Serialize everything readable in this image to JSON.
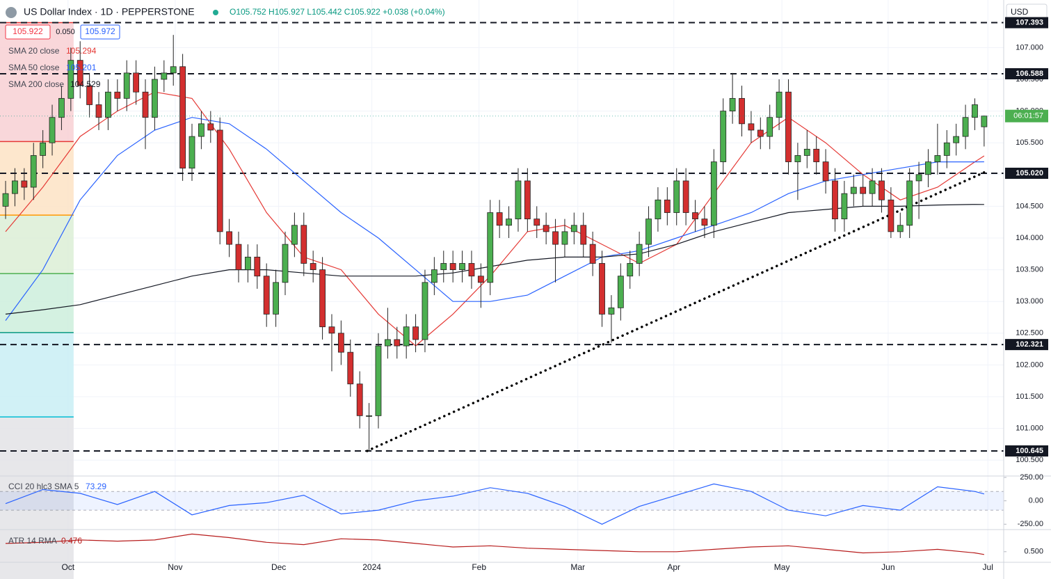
{
  "header": {
    "symbol": "US Dollar Index · 1D · PEPPERSTONE",
    "ohlc": "O105.752 H105.927 L105.442 C105.922 +0.038 (+0.04%)",
    "price_boxes": [
      "105.922",
      "0.050",
      "105.972"
    ],
    "currency": "USD",
    "countdown": "06:01:57"
  },
  "chart_data": [
    {
      "type": "candlestick",
      "xlim": [
        -0.6,
        107.1
      ],
      "ylim": [
        100.25,
        107.75
      ],
      "grid": true,
      "up_color": "#4caf50",
      "down_color": "#d32f2f",
      "xticks": [
        {
          "value": 6.7,
          "label": "Oct"
        },
        {
          "value": 18.2,
          "label": "Nov"
        },
        {
          "value": 29.3,
          "label": "Dec"
        },
        {
          "value": 39.3,
          "label": "2024"
        },
        {
          "value": 50.8,
          "label": "Feb"
        },
        {
          "value": 61.4,
          "label": "Mar"
        },
        {
          "value": 71.7,
          "label": "Apr"
        },
        {
          "value": 83.3,
          "label": "May"
        },
        {
          "value": 94.7,
          "label": "Jun"
        },
        {
          "value": 105.4,
          "label": "Jul"
        }
      ],
      "yticks": [
        {
          "value": 100.5,
          "label": "100.500"
        },
        {
          "value": 101,
          "label": "101.000"
        },
        {
          "value": 101.5,
          "label": "101.500"
        },
        {
          "value": 102,
          "label": "102.000"
        },
        {
          "value": 102.5,
          "label": "102.500"
        },
        {
          "value": 103,
          "label": "103.000"
        },
        {
          "value": 103.5,
          "label": "103.500"
        },
        {
          "value": 104,
          "label": "104.000"
        },
        {
          "value": 104.5,
          "label": "104.500"
        },
        {
          "value": 105,
          "label": "105.000"
        },
        {
          "value": 105.5,
          "label": "105.500"
        },
        {
          "value": 106,
          "label": "106.000"
        },
        {
          "value": 106.5,
          "label": "106.500"
        },
        {
          "value": 107,
          "label": "107.000"
        }
      ],
      "open": [
        104.5,
        104.7,
        104.9,
        104.8,
        105.3,
        105.5,
        105.9,
        106.2,
        106.8,
        106.4,
        106.1,
        105.9,
        106.3,
        106.2,
        106.6,
        106.3,
        105.9,
        106.5,
        106.6,
        106.7,
        105.1,
        105.6,
        105.8,
        105.7,
        104.1,
        103.9,
        103.5,
        103.7,
        103.4,
        102.8,
        103.3,
        103.9,
        104.2,
        103.6,
        103.5,
        102.6,
        102.5,
        102.2,
        101.7,
        101.2,
        101.2,
        102.3,
        102.4,
        102.3,
        102.6,
        102.4,
        103.3,
        103.5,
        103.6,
        103.5,
        103.6,
        103.4,
        103.3,
        104.4,
        104.2,
        104.3,
        104.9,
        104.3,
        104.2,
        104.1,
        103.9,
        104.1,
        104.2,
        103.9,
        103.6,
        102.8,
        102.9,
        103.4,
        103.6,
        103.9,
        104.3,
        104.6,
        104.4,
        104.9,
        104.4,
        104.3,
        104.2,
        105.2,
        106.0,
        106.2,
        105.8,
        105.7,
        105.6,
        105.9,
        106.3,
        105.2,
        105.3,
        105.4,
        105.2,
        104.9,
        104.3,
        104.7,
        104.8,
        104.7,
        104.9,
        104.6,
        104.1,
        104.2,
        104.9,
        105.0,
        105.2,
        105.3,
        105.5,
        105.6,
        105.9,
        105.752
      ],
      "high": [
        104.9,
        105.1,
        105.1,
        105.5,
        105.7,
        106.1,
        106.4,
        107.0,
        107.1,
        106.6,
        106.3,
        106.5,
        106.5,
        106.8,
        106.8,
        106.5,
        106.7,
        106.8,
        107.2,
        106.9,
        105.8,
        106.0,
        106.0,
        105.9,
        104.3,
        104.1,
        103.9,
        103.9,
        103.6,
        103.5,
        104.1,
        104.4,
        104.4,
        103.8,
        103.7,
        102.8,
        102.7,
        102.4,
        101.9,
        101.4,
        102.5,
        102.9,
        102.6,
        102.8,
        102.8,
        103.5,
        103.7,
        103.8,
        103.8,
        103.8,
        103.8,
        103.6,
        104.6,
        104.6,
        104.5,
        105.1,
        105.1,
        104.5,
        104.4,
        104.3,
        104.3,
        104.4,
        104.4,
        104.1,
        103.8,
        103.1,
        103.6,
        103.8,
        104.1,
        104.5,
        104.8,
        104.8,
        105.1,
        105.1,
        104.6,
        104.5,
        105.4,
        106.2,
        106.6,
        106.4,
        106.0,
        105.9,
        106.1,
        106.5,
        106.5,
        105.5,
        105.7,
        105.6,
        105.4,
        105.1,
        104.9,
        105.0,
        105.0,
        105.1,
        105.1,
        104.8,
        104.4,
        105.1,
        105.2,
        105.4,
        105.8,
        105.7,
        105.8,
        106.1,
        106.2,
        105.927
      ],
      "low": [
        104.3,
        104.5,
        104.6,
        104.6,
        105.1,
        105.3,
        105.7,
        106.0,
        106.2,
        105.9,
        105.7,
        105.7,
        106.0,
        106.0,
        106.1,
        105.4,
        105.7,
        106.3,
        106.4,
        104.9,
        104.9,
        105.4,
        105.5,
        103.9,
        103.7,
        103.3,
        103.3,
        103.2,
        102.6,
        102.6,
        103.1,
        103.7,
        103.4,
        103.3,
        102.4,
        101.9,
        102.0,
        101.5,
        101.0,
        100.65,
        101.0,
        102.1,
        102.1,
        102.1,
        102.2,
        102.2,
        103.1,
        103.3,
        103.3,
        103.3,
        103.2,
        102.9,
        103.1,
        104.0,
        104.0,
        104.1,
        104.1,
        104.0,
        103.9,
        103.3,
        103.7,
        103.9,
        103.7,
        103.4,
        102.6,
        102.35,
        102.7,
        103.2,
        103.4,
        103.7,
        104.1,
        104.2,
        104.2,
        104.2,
        104.1,
        104.0,
        104.0,
        105.0,
        105.8,
        105.6,
        105.5,
        105.4,
        105.4,
        105.7,
        105.0,
        104.6,
        105.1,
        105.0,
        104.7,
        104.1,
        104.1,
        104.5,
        104.5,
        104.5,
        104.4,
        104.0,
        104.0,
        104.0,
        104.3,
        104.8,
        105.0,
        105.1,
        105.3,
        105.4,
        105.7,
        105.442
      ],
      "close": [
        104.7,
        104.9,
        104.8,
        105.3,
        105.5,
        105.9,
        106.2,
        106.8,
        106.4,
        106.1,
        105.9,
        106.3,
        106.2,
        106.6,
        106.3,
        105.9,
        106.5,
        106.6,
        106.7,
        105.1,
        105.6,
        105.8,
        105.7,
        104.1,
        103.9,
        103.5,
        103.7,
        103.4,
        102.8,
        103.3,
        103.9,
        104.2,
        103.6,
        103.5,
        102.6,
        102.5,
        102.2,
        101.7,
        101.2,
        101.2,
        102.3,
        102.4,
        102.3,
        102.6,
        102.4,
        103.3,
        103.5,
        103.6,
        103.5,
        103.6,
        103.4,
        103.3,
        104.4,
        104.2,
        104.3,
        104.9,
        104.3,
        104.2,
        104.1,
        103.9,
        104.1,
        104.2,
        103.9,
        103.6,
        102.8,
        102.9,
        103.4,
        103.6,
        103.9,
        104.3,
        104.6,
        104.4,
        104.9,
        104.4,
        104.3,
        104.2,
        105.2,
        106.0,
        106.2,
        105.8,
        105.7,
        105.6,
        105.9,
        106.3,
        105.2,
        105.3,
        105.4,
        105.2,
        104.9,
        104.3,
        104.7,
        104.8,
        104.7,
        104.9,
        104.6,
        104.1,
        104.2,
        104.9,
        105.0,
        105.2,
        105.3,
        105.5,
        105.6,
        105.9,
        106.1,
        105.922
      ],
      "overlays": [
        {
          "name": "SMA 20 close",
          "color": "#e53935",
          "x": [
            0,
            4,
            8,
            12,
            16,
            20,
            24,
            28,
            32,
            36,
            40,
            44,
            48,
            52,
            56,
            60,
            64,
            68,
            72,
            76,
            80,
            84,
            88,
            92,
            96,
            100,
            104,
            105
          ],
          "values": [
            104.1,
            104.8,
            105.6,
            106.0,
            106.3,
            106.2,
            105.4,
            104.4,
            103.7,
            103.5,
            102.8,
            102.3,
            102.8,
            103.4,
            104.1,
            104.2,
            103.9,
            103.6,
            103.9,
            104.7,
            105.5,
            105.9,
            105.5,
            105.0,
            104.6,
            104.8,
            105.2,
            105.294
          ]
        },
        {
          "name": "SMA 50 close",
          "color": "#2962ff",
          "x": [
            0,
            4,
            8,
            12,
            16,
            20,
            24,
            28,
            32,
            36,
            40,
            44,
            48,
            52,
            56,
            60,
            64,
            68,
            72,
            76,
            80,
            84,
            88,
            92,
            96,
            100,
            104,
            105
          ],
          "values": [
            102.7,
            103.5,
            104.6,
            105.3,
            105.7,
            105.9,
            105.8,
            105.4,
            104.9,
            104.4,
            104.0,
            103.5,
            103.0,
            103.0,
            103.1,
            103.4,
            103.7,
            103.8,
            104.0,
            104.2,
            104.4,
            104.7,
            104.9,
            105.0,
            105.1,
            105.2,
            105.2,
            105.201
          ]
        },
        {
          "name": "SMA 200 close",
          "color": "#131722",
          "x": [
            0,
            4,
            8,
            12,
            16,
            20,
            24,
            28,
            32,
            36,
            40,
            44,
            48,
            52,
            56,
            60,
            64,
            68,
            72,
            76,
            80,
            84,
            88,
            92,
            96,
            100,
            104,
            105
          ],
          "values": [
            102.8,
            102.87,
            102.95,
            103.1,
            103.25,
            103.4,
            103.5,
            103.5,
            103.45,
            103.4,
            103.4,
            103.4,
            103.45,
            103.55,
            103.65,
            103.7,
            103.7,
            103.75,
            103.9,
            104.1,
            104.25,
            104.4,
            104.45,
            104.5,
            104.5,
            104.52,
            104.53,
            104.529
          ]
        }
      ],
      "levels": [
        {
          "value": 107.393,
          "label": "107.393"
        },
        106.588,
        {
          "value": 105.02,
          "label": "105.020"
        },
        102.321,
        100.645
      ],
      "trendline": {
        "x": [
          38.8,
          105.4
        ],
        "values": [
          100.645,
          105.06
        ]
      },
      "fib": {
        "x": [
          -0.6,
          7.3
        ],
        "levels": [
          107.393,
          105.52,
          104.36,
          103.44,
          102.51,
          101.18
        ],
        "band_colors": [
          "#f8d0d3",
          "#fde3c4",
          "#dcefd6",
          "#cdeedc",
          "#c9eff5",
          "#e3e3e6"
        ],
        "line_colors": [
          "#e53935",
          "#e53935",
          "#ff9800",
          "#4caf50",
          "#089981",
          "#00bcd4"
        ]
      }
    },
    {
      "type": "line",
      "name": "CCI 20 hlc3 SMA 5",
      "color": "#2962ff",
      "xlim": [
        -0.6,
        107.1
      ],
      "ylim": [
        -300,
        265
      ],
      "band": [
        100,
        -100
      ],
      "yticks": [
        {
          "value": 250,
          "label": "250.00"
        },
        {
          "value": 0,
          "label": "0.00"
        },
        {
          "value": -250,
          "label": "-250.00"
        }
      ],
      "x": [
        0,
        4,
        8,
        12,
        16,
        20,
        24,
        28,
        32,
        36,
        40,
        44,
        48,
        52,
        56,
        60,
        64,
        68,
        72,
        76,
        80,
        84,
        88,
        92,
        96,
        100,
        104,
        105
      ],
      "values": [
        -30,
        120,
        80,
        -40,
        100,
        -150,
        -50,
        -20,
        60,
        -140,
        -100,
        0,
        50,
        140,
        80,
        -60,
        -250,
        -60,
        60,
        180,
        100,
        -100,
        -160,
        -50,
        -100,
        150,
        100,
        73.29
      ]
    },
    {
      "type": "line",
      "name": "ATR 14 RMA",
      "color": "#b71c1c",
      "xlim": [
        -0.6,
        107.1
      ],
      "ylim": [
        0.41,
        0.682
      ],
      "yticks": [
        {
          "value": 0.5,
          "label": "0.500"
        }
      ],
      "x": [
        0,
        4,
        8,
        12,
        16,
        20,
        24,
        28,
        32,
        36,
        40,
        44,
        48,
        52,
        56,
        60,
        64,
        68,
        72,
        76,
        80,
        84,
        88,
        92,
        96,
        100,
        104,
        105
      ],
      "values": [
        0.57,
        0.58,
        0.6,
        0.59,
        0.6,
        0.65,
        0.62,
        0.58,
        0.56,
        0.61,
        0.6,
        0.57,
        0.54,
        0.55,
        0.53,
        0.52,
        0.51,
        0.5,
        0.5,
        0.52,
        0.54,
        0.55,
        0.52,
        0.49,
        0.5,
        0.52,
        0.49,
        0.476
      ]
    }
  ]
}
